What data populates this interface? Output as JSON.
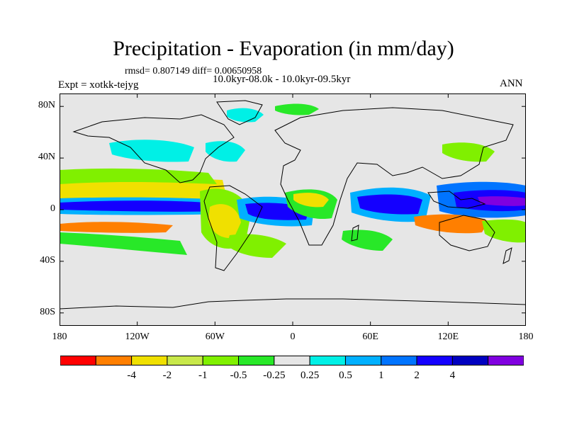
{
  "title": "Precipitation - Evaporation (in mm/day)",
  "stats_line": "rmsd= 0.807149  diff= 0.00650958",
  "experiment_label": "Expt = xotkk-tejyg",
  "period_label": "10.0kyr-08.0k - 10.0kyr-09.5kyr",
  "season_label": "ANN",
  "map": {
    "lon_range": [
      -180,
      180
    ],
    "lat_range": [
      -90,
      90
    ],
    "lat_ticks": [
      {
        "lat": 80,
        "label": "80N"
      },
      {
        "lat": 40,
        "label": "40N"
      },
      {
        "lat": 0,
        "label": "0"
      },
      {
        "lat": -40,
        "label": "40S"
      },
      {
        "lat": -80,
        "label": "80S"
      }
    ],
    "lon_ticks": [
      {
        "lon": -180,
        "label": "180"
      },
      {
        "lon": -120,
        "label": "120W"
      },
      {
        "lon": -60,
        "label": "60W"
      },
      {
        "lon": 0,
        "label": "0"
      },
      {
        "lon": 60,
        "label": "60E"
      },
      {
        "lon": 120,
        "label": "120E"
      },
      {
        "lon": 180,
        "label": "180"
      }
    ],
    "background_color": "#e6e6e6"
  },
  "colorbar": {
    "colors": [
      "#ff0000",
      "#ff7f00",
      "#f0e000",
      "#c8e84a",
      "#80f000",
      "#28e828",
      "#e6e6e6",
      "#00f0e6",
      "#00b0ff",
      "#0074ff",
      "#1400ff",
      "#0000c0",
      "#8000e0"
    ],
    "labels": [
      "-4",
      "-2",
      "-1",
      "-0.5",
      "-0.25",
      "0.25",
      "0.5",
      "1",
      "2",
      "4"
    ]
  }
}
